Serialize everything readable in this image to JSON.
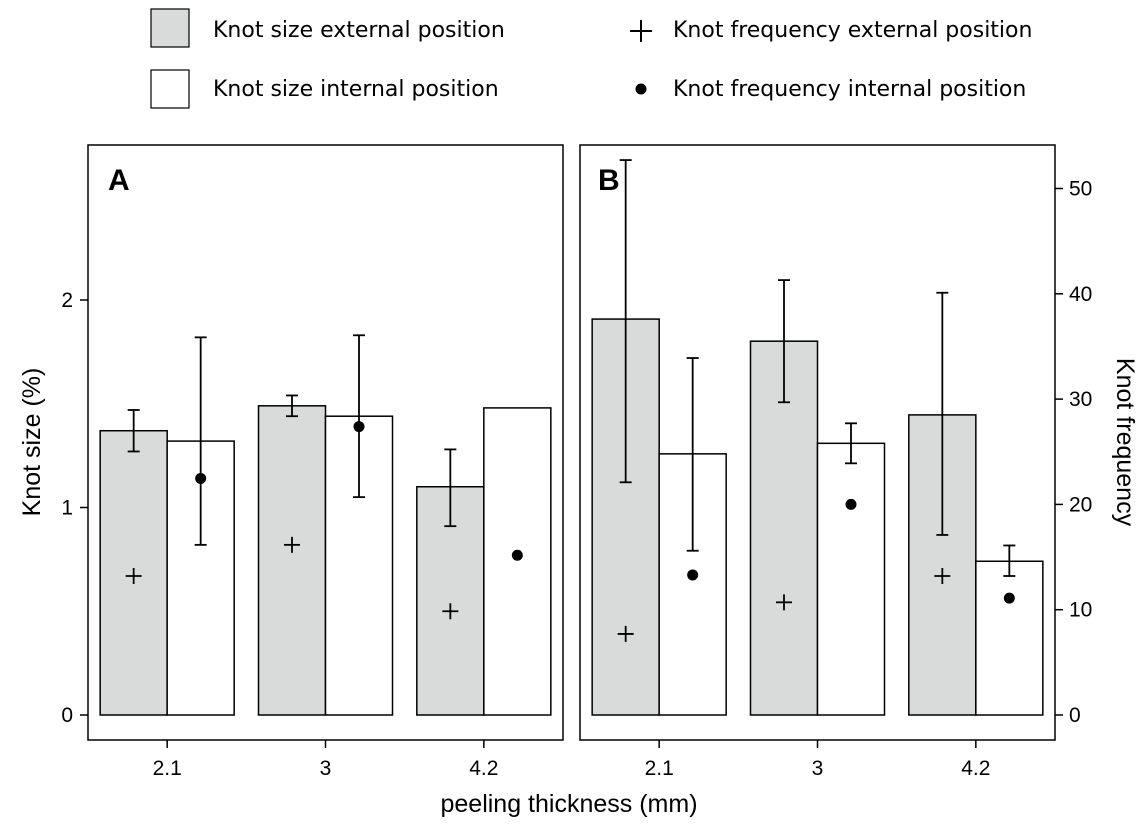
{
  "chart_data": {
    "type": "bar",
    "legend": {
      "placement": "top",
      "items": [
        {
          "label": "Knot size external position",
          "symbol": "bar",
          "color": "#d9dbda"
        },
        {
          "label": "Knot size internal position",
          "symbol": "bar",
          "color": "#ffffff"
        },
        {
          "label": "Knot frequency external  position",
          "symbol": "plus",
          "color": "#000000"
        },
        {
          "label": "Knot frequency internal  position",
          "symbol": "dot",
          "color": "#000000"
        }
      ]
    },
    "categories": [
      "2.1",
      "3",
      "4.2"
    ],
    "xlabel": "peeling thickness (mm)",
    "left_axis": {
      "label": "Knot size (%)",
      "ticks": [
        "0",
        "1",
        "2"
      ],
      "range": [
        0,
        2.7
      ]
    },
    "right_axis": {
      "label": "Knot frequency",
      "ticks": [
        "0",
        "10",
        "20",
        "30",
        "40",
        "50"
      ],
      "range": [
        0,
        55
      ]
    },
    "panels": [
      {
        "label": "A",
        "axis": "left",
        "series": [
          {
            "name": "Knot size external position",
            "values": [
              1.37,
              1.49,
              1.1
            ],
            "err_low": [
              1.27,
              1.44,
              0.91
            ],
            "err_high": [
              1.47,
              1.54,
              1.28
            ]
          },
          {
            "name": "Knot size internal position",
            "values": [
              1.32,
              1.44,
              1.48
            ],
            "err_low": [
              null,
              null,
              null
            ],
            "err_high": [
              null,
              null,
              null
            ]
          }
        ],
        "points": [
          {
            "name": "Knot frequency external  position",
            "values": [
              0.67,
              0.82,
              0.5
            ]
          },
          {
            "name": "Knot frequency internal  position",
            "values": [
              1.14,
              1.39,
              0.77
            ],
            "err_low": [
              0.82,
              1.05,
              null
            ],
            "err_high": [
              1.82,
              1.83,
              null
            ]
          }
        ]
      },
      {
        "label": "B",
        "axis": "right",
        "series": [
          {
            "name": "Knot size external position",
            "values": [
              37.6,
              35.5,
              28.5
            ],
            "err_low": [
              22.1,
              29.7,
              17.1
            ],
            "err_high": [
              52.7,
              41.3,
              40.1
            ]
          },
          {
            "name": "Knot size internal position",
            "values": [
              24.8,
              25.8,
              14.6
            ],
            "err_low": [
              15.6,
              23.9,
              13.2
            ],
            "err_high": [
              33.9,
              27.7,
              16.1
            ]
          }
        ],
        "points": [
          {
            "name": "Knot frequency external  position",
            "values": [
              7.7,
              10.7,
              13.2
            ]
          },
          {
            "name": "Knot frequency internal  position",
            "values": [
              13.3,
              20.0,
              11.1
            ]
          }
        ]
      }
    ]
  }
}
